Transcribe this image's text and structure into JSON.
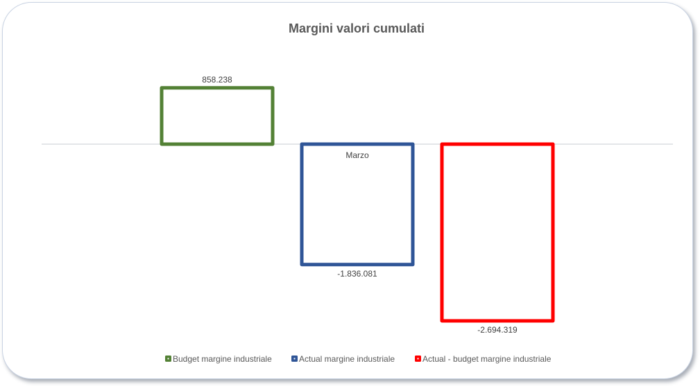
{
  "chart_data": {
    "type": "bar",
    "title": "Margini valori cumulati",
    "categories": [
      "Marzo"
    ],
    "series": [
      {
        "name": "Budget margine industriale",
        "values": [
          858238
        ],
        "label": "858.238",
        "color": "#538135"
      },
      {
        "name": "Actual margine industriale",
        "values": [
          -1836081
        ],
        "label": "-1.836.081",
        "color": "#2F5597"
      },
      {
        "name": "Actual - budget margine industriale",
        "values": [
          -2694319
        ],
        "label": "-2.694.319",
        "color": "#FF0000"
      }
    ],
    "fill": "none",
    "grid": false,
    "legend": "bottom",
    "xlabel": "",
    "ylabel": ""
  }
}
